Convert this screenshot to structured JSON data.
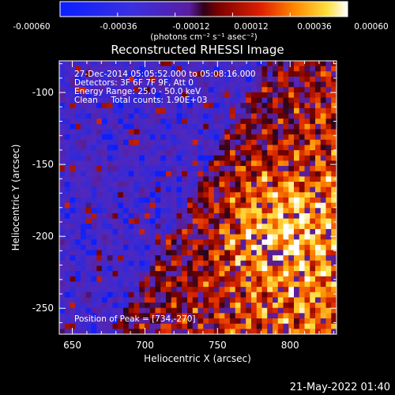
{
  "colorbar": {
    "ticks": [
      "-0.00060",
      "-0.00036",
      "-0.00012",
      "0.00012",
      "0.00036",
      "0.00060"
    ],
    "unit_label": "(photons cm⁻² s⁻¹ asec⁻²)",
    "range": [
      -0.0006,
      0.0006
    ]
  },
  "chart_data": {
    "type": "heatmap",
    "title": "Reconstructed RHESSI Image",
    "xlabel": "Heliocentric X (arcsec)",
    "ylabel": "Heliocentric Y (arcsec)",
    "xlim": [
      641,
      832
    ],
    "ylim": [
      -268,
      -78
    ],
    "x_ticks": [
      650,
      700,
      750,
      800
    ],
    "y_ticks": [
      -250,
      -200,
      -150,
      -100
    ],
    "colormap": "rhessi red-temperature (blue negative, purple zero, red/yellow/white positive)",
    "peak_location": [
      734,
      -270
    ],
    "description_values": {
      "left_region_mean": -0.00018,
      "right_region_peak": 0.0006
    }
  },
  "annotations": {
    "line1": "27-Dec-2014 05:05:52.000 to 05:08:16.000",
    "line2": "Detectors: 3F 6F 7F 9F, Att 0",
    "line3": "Energy Range: 25.0 - 50.0 keV",
    "line4": "Clean     Total counts: 1.90E+03",
    "peak": "Position of Peak = [734,-270]"
  },
  "footer": {
    "timestamp": "21-May-2022 01:40"
  }
}
